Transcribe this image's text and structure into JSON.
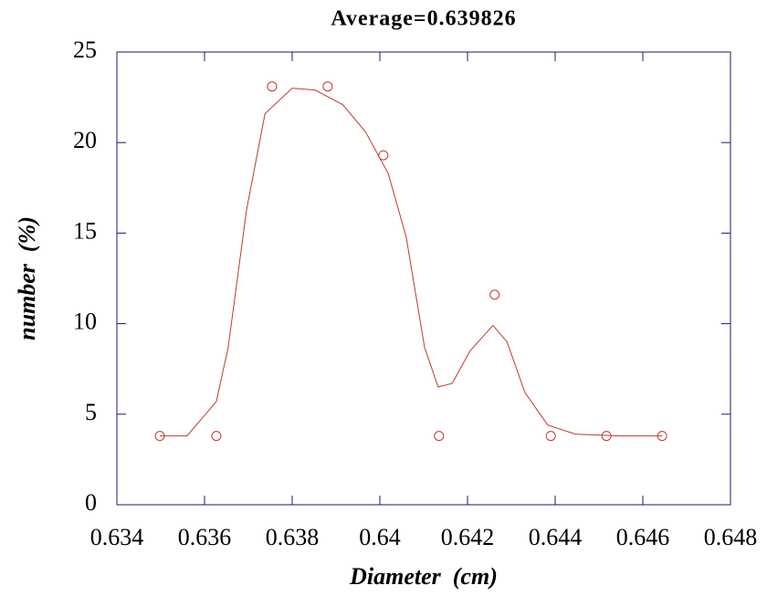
{
  "chart_data": {
    "type": "scatter",
    "title": "Average=0.639826",
    "x_label": "Diameter  (cm)",
    "y_label": "number  (%)",
    "series": [
      {
        "color": "#c0392b",
        "x": [
          0.63498,
          0.63627,
          0.63754,
          0.63881,
          0.64008,
          0.64135,
          0.64262,
          0.6439,
          0.64517,
          0.64644
        ],
        "values": [
          3.8,
          3.8,
          23.1,
          23.1,
          19.3,
          3.8,
          11.6,
          3.8,
          3.8,
          3.8
        ]
      }
    ],
    "curve": {
      "color": "#c0392b",
      "x": [
        0.63498,
        0.6356,
        0.63627,
        0.63654,
        0.63696,
        0.63738,
        0.638,
        0.63852,
        0.63915,
        0.63967,
        0.64019,
        0.6406,
        0.64102,
        0.64133,
        0.64165,
        0.64206,
        0.64258,
        0.6429,
        0.64331,
        0.64383,
        0.64446,
        0.6455,
        0.64644
      ],
      "values": [
        3.8,
        3.8,
        5.7,
        8.7,
        16.3,
        21.6,
        23.0,
        22.9,
        22.1,
        20.6,
        18.3,
        14.8,
        8.7,
        6.5,
        6.7,
        8.5,
        9.9,
        9.0,
        6.2,
        4.4,
        3.9,
        3.8,
        3.8
      ]
    },
    "xlim": [
      0.634,
      0.648
    ],
    "xticks": [
      0.634,
      0.636,
      0.638,
      0.64,
      0.642,
      0.644,
      0.646,
      0.648
    ],
    "ylim": [
      0,
      25
    ],
    "yticks": [
      0,
      5,
      10,
      15,
      20,
      25
    ]
  }
}
